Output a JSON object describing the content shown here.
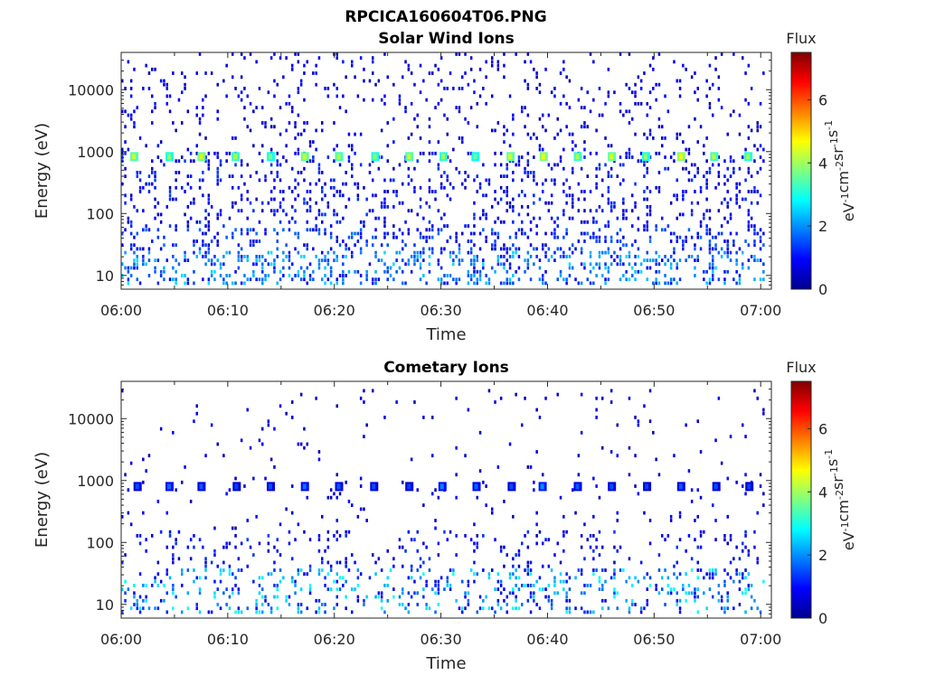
{
  "figure_title": "RPCICA160604T06.PNG",
  "colors": {
    "axis": "#262626",
    "colormap": [
      "#00008f",
      "#0000ff",
      "#007fff",
      "#00ffff",
      "#7fff7f",
      "#ffff00",
      "#ff7f00",
      "#ff0000",
      "#7f0000"
    ]
  },
  "chart_data": [
    {
      "type": "heatmap",
      "title": "Solar Wind Ions",
      "xlabel": "Time",
      "ylabel": "Energy (eV)",
      "x_ticks": [
        "06:00",
        "06:10",
        "06:20",
        "06:30",
        "06:40",
        "06:50",
        "07:00"
      ],
      "x_range_minutes": [
        0,
        61
      ],
      "y_scale": "log",
      "y_range": [
        6,
        40000
      ],
      "y_ticks": [
        10,
        100,
        1000,
        10000
      ],
      "y_tick_labels": [
        "10",
        "100",
        "1000",
        "10000"
      ],
      "colorbar": {
        "title": "Flux",
        "label": "eV-1cm-2sr-1s-1",
        "range": [
          0,
          7.5
        ],
        "ticks": [
          0,
          2,
          4,
          6
        ]
      },
      "bands": [
        {
          "e_min": 1000,
          "e_max": 40000,
          "density": 0.09,
          "v_min": 0.2,
          "v_max": 1.1
        },
        {
          "e_min": 60,
          "e_max": 1000,
          "density": 0.16,
          "v_min": 0.3,
          "v_max": 1.4
        },
        {
          "e_min": 25,
          "e_max": 60,
          "density": 0.22,
          "v_min": 0.5,
          "v_max": 1.8
        },
        {
          "e_min": 7,
          "e_max": 25,
          "density": 0.3,
          "v_min": 0.8,
          "v_max": 2.6
        }
      ],
      "repeating_peak": {
        "energy": 830,
        "times_minutes": [
          1.2,
          4.5,
          7.5,
          10.7,
          14.0,
          17.2,
          20.4,
          23.8,
          27.0,
          30.2,
          33.2,
          36.5,
          39.6,
          42.8,
          46.0,
          49.2,
          52.5,
          55.6,
          58.8
        ],
        "values": [
          3.4,
          3.0,
          3.6,
          3.2,
          2.9,
          3.5,
          3.3,
          3.0,
          3.4,
          3.1,
          2.8,
          3.5,
          3.7,
          3.2,
          3.5,
          3.0,
          3.8,
          3.3,
          3.1
        ]
      }
    },
    {
      "type": "heatmap",
      "title": "Cometary Ions",
      "xlabel": "Time",
      "ylabel": "Energy (eV)",
      "x_ticks": [
        "06:00",
        "06:10",
        "06:20",
        "06:30",
        "06:40",
        "06:50",
        "07:00"
      ],
      "x_range_minutes": [
        0,
        61
      ],
      "y_scale": "log",
      "y_range": [
        6,
        40000
      ],
      "y_ticks": [
        10,
        100,
        1000,
        10000
      ],
      "y_tick_labels": [
        "10",
        "100",
        "1000",
        "10000"
      ],
      "colorbar": {
        "title": "Flux",
        "label": "eV-1cm-2sr-1s-1",
        "range": [
          0,
          7.5
        ],
        "ticks": [
          0,
          2,
          4,
          6
        ]
      },
      "bands": [
        {
          "e_min": 1500,
          "e_max": 30000,
          "density": 0.025,
          "v_min": 0.2,
          "v_max": 1.0
        },
        {
          "e_min": 150,
          "e_max": 1500,
          "density": 0.035,
          "v_min": 0.2,
          "v_max": 1.1
        },
        {
          "e_min": 40,
          "e_max": 150,
          "density": 0.1,
          "v_min": 0.3,
          "v_max": 1.4
        },
        {
          "e_min": 7,
          "e_max": 40,
          "density": 0.22,
          "v_min": 0.6,
          "v_max": 3.0
        }
      ],
      "repeating_peak": {
        "energy": 800,
        "times_minutes": [
          1.5,
          4.5,
          7.5,
          10.8,
          14.0,
          17.2,
          20.4,
          23.7,
          27.0,
          30.1,
          33.3,
          36.6,
          39.5,
          42.8,
          46.0,
          49.3,
          52.5,
          55.8,
          58.9
        ],
        "values": [
          0.6,
          0.8,
          0.7,
          0.5,
          0.6,
          0.9,
          0.7,
          0.6,
          0.5,
          1.0,
          0.8,
          0.6,
          1.1,
          0.7,
          0.6,
          0.5,
          0.7,
          0.6,
          0.5
        ]
      }
    }
  ]
}
